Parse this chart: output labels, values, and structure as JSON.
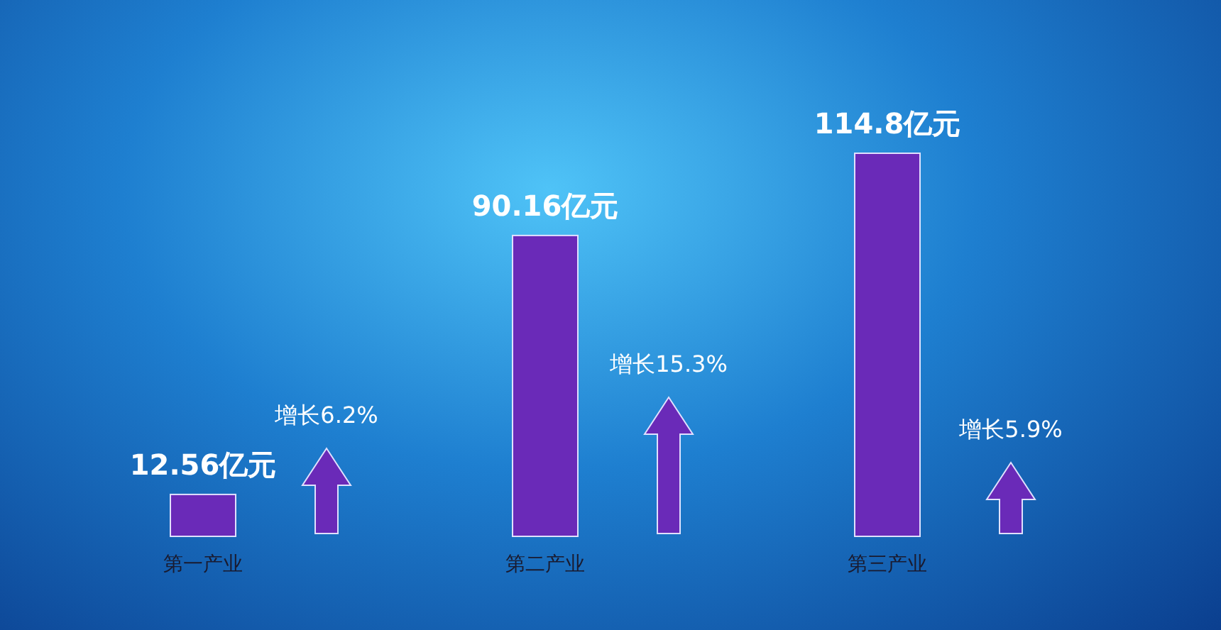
{
  "chart_data": {
    "type": "bar",
    "categories": [
      "第一产业",
      "第二产业",
      "第三产业"
    ],
    "values": [
      12.56,
      90.16,
      114.8
    ],
    "value_labels": [
      "12.56亿元",
      "90.16亿元",
      "114.8亿元"
    ],
    "color": "#6a2ab8",
    "annotations": [
      "增长6.2%",
      "增长15.3%",
      "增长5.9%"
    ]
  }
}
